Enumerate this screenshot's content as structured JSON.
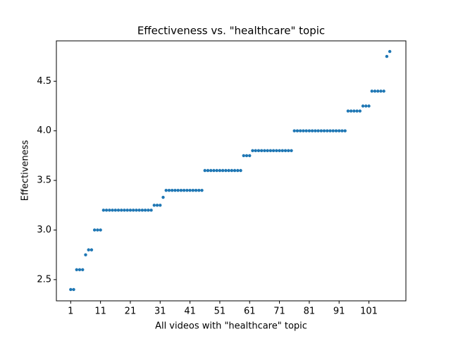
{
  "chart_data": {
    "type": "scatter",
    "title": "Effectiveness vs. \"healthcare\" topic",
    "xlabel": "All videos with \"healthcare\" topic",
    "ylabel": "Effectiveness",
    "series": [
      {
        "color": "#1f77b4",
        "x": [
          1,
          2,
          3,
          4,
          5,
          6,
          7,
          8,
          9,
          10,
          11,
          12,
          13,
          14,
          15,
          16,
          17,
          18,
          19,
          20,
          21,
          22,
          23,
          24,
          25,
          26,
          27,
          28,
          29,
          30,
          31,
          32,
          33,
          34,
          35,
          36,
          37,
          38,
          39,
          40,
          41,
          42,
          43,
          44,
          45,
          46,
          47,
          48,
          49,
          50,
          51,
          52,
          53,
          54,
          55,
          56,
          57,
          58,
          59,
          60,
          61,
          62,
          63,
          64,
          65,
          66,
          67,
          68,
          69,
          70,
          71,
          72,
          73,
          74,
          75,
          76,
          77,
          78,
          79,
          80,
          81,
          82,
          83,
          84,
          85,
          86,
          87,
          88,
          89,
          90,
          91,
          92,
          93,
          94,
          95,
          96,
          97,
          98,
          99,
          100,
          101,
          102,
          103,
          104,
          105,
          106,
          107,
          108
        ],
        "values": [
          2.4,
          2.4,
          2.6,
          2.6,
          2.6,
          2.75,
          2.8,
          2.8,
          3.0,
          3.0,
          3.0,
          3.2,
          3.2,
          3.2,
          3.2,
          3.2,
          3.2,
          3.2,
          3.2,
          3.2,
          3.2,
          3.2,
          3.2,
          3.2,
          3.2,
          3.2,
          3.2,
          3.2,
          3.25,
          3.25,
          3.25,
          3.33,
          3.4,
          3.4,
          3.4,
          3.4,
          3.4,
          3.4,
          3.4,
          3.4,
          3.4,
          3.4,
          3.4,
          3.4,
          3.4,
          3.6,
          3.6,
          3.6,
          3.6,
          3.6,
          3.6,
          3.6,
          3.6,
          3.6,
          3.6,
          3.6,
          3.6,
          3.6,
          3.75,
          3.75,
          3.75,
          3.8,
          3.8,
          3.8,
          3.8,
          3.8,
          3.8,
          3.8,
          3.8,
          3.8,
          3.8,
          3.8,
          3.8,
          3.8,
          3.8,
          4.0,
          4.0,
          4.0,
          4.0,
          4.0,
          4.0,
          4.0,
          4.0,
          4.0,
          4.0,
          4.0,
          4.0,
          4.0,
          4.0,
          4.0,
          4.0,
          4.0,
          4.0,
          4.2,
          4.2,
          4.2,
          4.2,
          4.2,
          4.25,
          4.25,
          4.25,
          4.4,
          4.4,
          4.4,
          4.4,
          4.4,
          4.75,
          4.8
        ]
      }
    ],
    "xlim": [
      -3.8,
      113.4
    ],
    "ylim": [
      2.286,
      4.907
    ],
    "xticks": [
      1,
      11,
      21,
      31,
      41,
      51,
      61,
      71,
      81,
      91,
      101
    ],
    "yticks": [
      2.5,
      {
        "value": 3,
        "label": "3.0"
      },
      3.5,
      {
        "value": 4,
        "label": "4.0"
      },
      4.5
    ],
    "grid": false
  }
}
